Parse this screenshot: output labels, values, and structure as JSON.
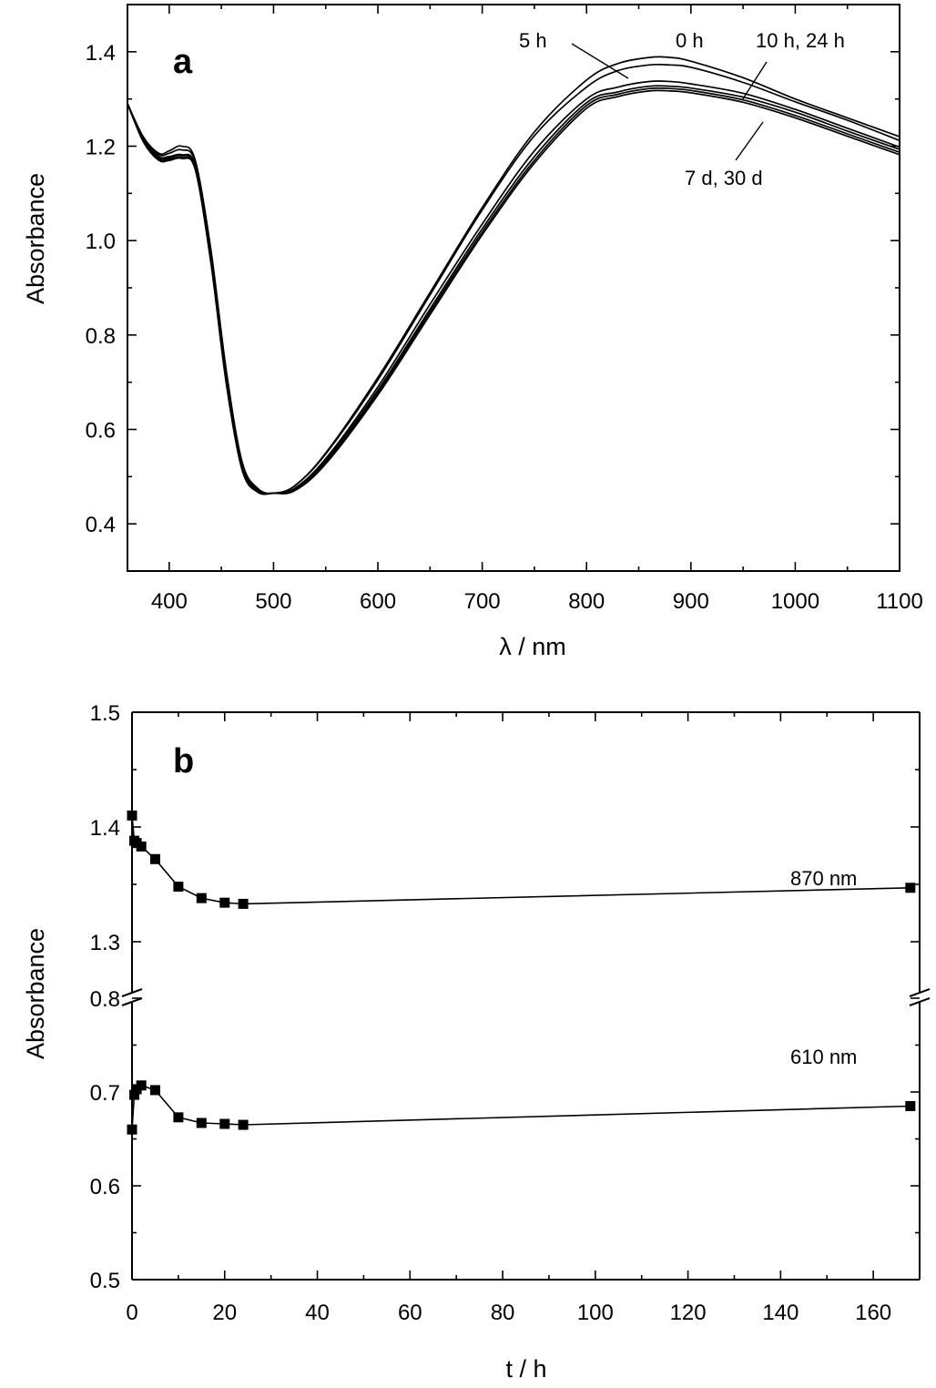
{
  "chart_data": [
    {
      "panel": "a",
      "type": "line",
      "xlabel": "λ / nm",
      "ylabel": "Absorbance",
      "xlim": [
        360,
        1100
      ],
      "ylim": [
        0.3,
        1.5
      ],
      "xticks": [
        400,
        500,
        600,
        700,
        800,
        900,
        1000,
        1100
      ],
      "yticks": [
        0.4,
        0.6,
        0.8,
        1.0,
        1.2,
        1.4
      ],
      "ytick_labels": [
        "0.4",
        "0.6",
        "0.8",
        "1.0",
        "1.2",
        "1.4"
      ],
      "x": [
        360,
        375,
        390,
        400,
        412,
        425,
        440,
        455,
        470,
        485,
        500,
        520,
        550,
        600,
        650,
        700,
        750,
        800,
        830,
        860,
        880,
        900,
        950,
        1000,
        1050,
        1100
      ],
      "series": [
        {
          "values": [
            1.29,
            1.22,
            1.185,
            1.19,
            1.2,
            1.17,
            0.98,
            0.72,
            0.53,
            0.475,
            0.465,
            0.48,
            0.55,
            0.71,
            0.89,
            1.07,
            1.23,
            1.34,
            1.375,
            1.388,
            1.388,
            1.38,
            1.345,
            1.3,
            1.26,
            1.22
          ]
        },
        {
          "values": [
            1.29,
            1.22,
            1.182,
            1.185,
            1.192,
            1.165,
            0.975,
            0.715,
            0.525,
            0.472,
            0.465,
            0.48,
            0.548,
            0.705,
            0.885,
            1.065,
            1.222,
            1.325,
            1.36,
            1.372,
            1.372,
            1.367,
            1.335,
            1.294,
            1.255,
            1.212
          ]
        },
        {
          "values": [
            1.29,
            1.215,
            1.178,
            1.178,
            1.182,
            1.158,
            0.965,
            0.705,
            0.52,
            0.47,
            0.465,
            0.475,
            0.538,
            0.69,
            0.865,
            1.035,
            1.19,
            1.3,
            1.325,
            1.337,
            1.337,
            1.332,
            1.312,
            1.278,
            1.238,
            1.198
          ]
        },
        {
          "values": [
            1.29,
            1.213,
            1.175,
            1.175,
            1.18,
            1.155,
            0.96,
            0.7,
            0.518,
            0.469,
            0.465,
            0.473,
            0.534,
            0.683,
            0.855,
            1.025,
            1.178,
            1.292,
            1.315,
            1.327,
            1.327,
            1.323,
            1.304,
            1.272,
            1.232,
            1.193
          ]
        },
        {
          "values": [
            1.29,
            1.212,
            1.172,
            1.172,
            1.176,
            1.152,
            0.955,
            0.695,
            0.515,
            0.468,
            0.465,
            0.472,
            0.53,
            0.678,
            0.849,
            1.018,
            1.17,
            1.286,
            1.31,
            1.322,
            1.322,
            1.318,
            1.298,
            1.265,
            1.226,
            1.187
          ]
        },
        {
          "values": [
            1.29,
            1.21,
            1.17,
            1.17,
            1.174,
            1.15,
            0.952,
            0.692,
            0.513,
            0.467,
            0.465,
            0.47,
            0.527,
            0.673,
            0.843,
            1.012,
            1.164,
            1.28,
            1.305,
            1.317,
            1.317,
            1.313,
            1.293,
            1.26,
            1.221,
            1.182
          ]
        }
      ],
      "annotations": [
        "0 h",
        "5 h",
        "10 h, 24 h",
        "7 d, 30 d"
      ]
    },
    {
      "panel": "b",
      "type": "line",
      "xlabel": "t / h",
      "ylabel": "Absorbance",
      "xlim": [
        0,
        170
      ],
      "xticks": [
        0,
        20,
        40,
        60,
        80,
        100,
        120,
        140,
        160
      ],
      "broken_y_axis": true,
      "upper_ylim": [
        1.3,
        1.5
      ],
      "upper_yticks": [
        1.3,
        1.4,
        1.5
      ],
      "lower_ylim": [
        0.5,
        0.8
      ],
      "lower_yticks": [
        0.5,
        0.6,
        0.7,
        0.8
      ],
      "x": [
        0,
        0.5,
        1,
        2,
        5,
        10,
        15,
        20,
        24,
        168
      ],
      "series": [
        {
          "name": "870 nm",
          "axis": "upper",
          "values": [
            1.41,
            1.388,
            1.386,
            1.383,
            1.372,
            1.348,
            1.338,
            1.334,
            1.333,
            1.347
          ]
        },
        {
          "name": "610 nm",
          "axis": "lower",
          "values": [
            0.66,
            0.697,
            0.703,
            0.707,
            0.702,
            0.673,
            0.667,
            0.666,
            0.665,
            0.685
          ]
        }
      ]
    }
  ]
}
